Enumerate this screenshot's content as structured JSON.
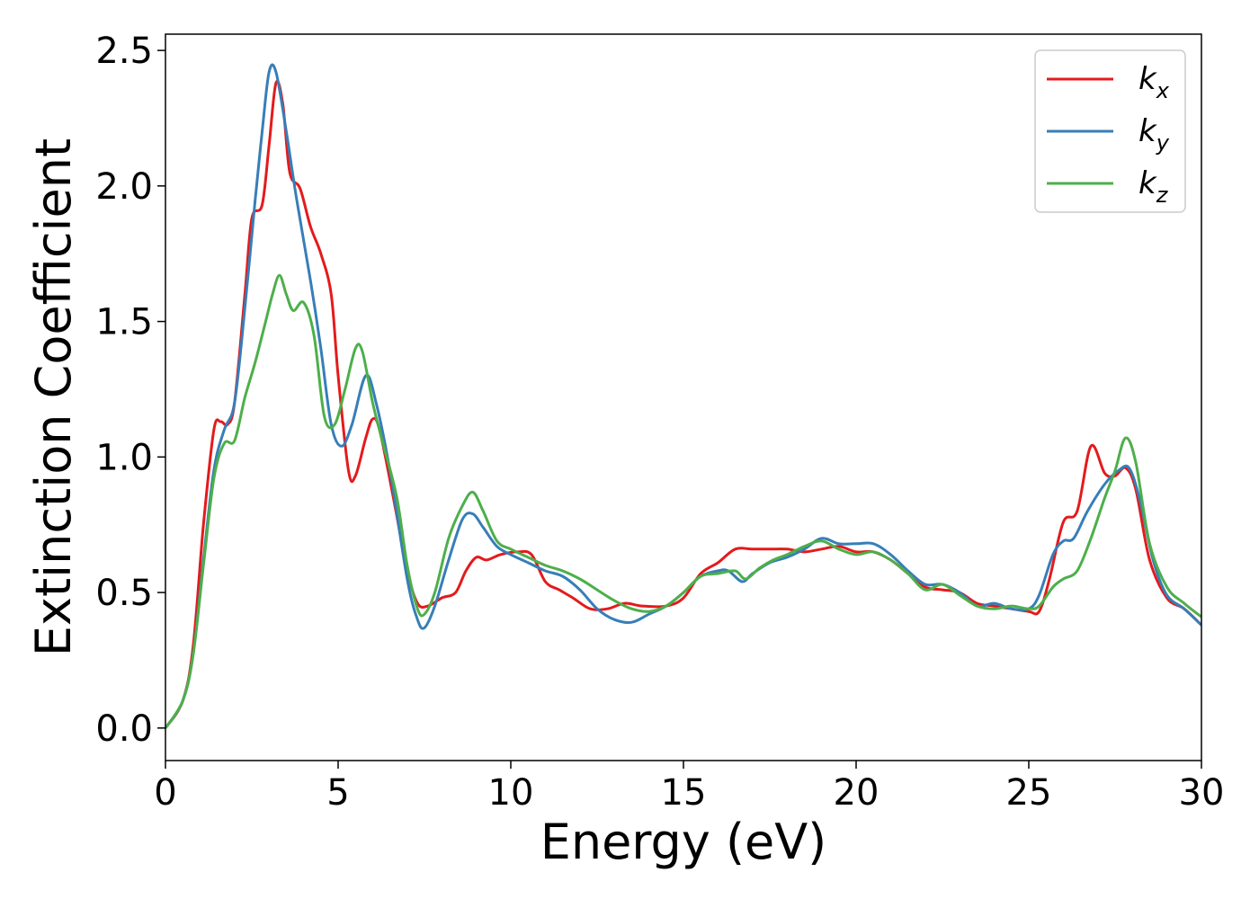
{
  "chart_data": {
    "type": "line",
    "xlabel": "Energy (eV)",
    "ylabel": "Extinction Coefficient",
    "xlim": [
      0,
      30
    ],
    "ylim": [
      -0.12,
      2.56
    ],
    "x_ticks": [
      "0",
      "5",
      "10",
      "15",
      "20",
      "25",
      "30"
    ],
    "y_ticks": [
      "0.0",
      "0.5",
      "1.0",
      "1.5",
      "2.0",
      "2.5"
    ],
    "legend_position": "top-right",
    "grid": false,
    "series": [
      {
        "name": "k_x",
        "label_main": "k",
        "label_sub": "x",
        "color": "#e41a1c",
        "points": [
          [
            0,
            0
          ],
          [
            0.5,
            0.1
          ],
          [
            0.8,
            0.3
          ],
          [
            1.1,
            0.75
          ],
          [
            1.4,
            1.1
          ],
          [
            1.6,
            1.13
          ],
          [
            1.8,
            1.12
          ],
          [
            2.0,
            1.2
          ],
          [
            2.3,
            1.6
          ],
          [
            2.5,
            1.88
          ],
          [
            2.8,
            1.93
          ],
          [
            3.0,
            2.15
          ],
          [
            3.2,
            2.38
          ],
          [
            3.4,
            2.3
          ],
          [
            3.6,
            2.05
          ],
          [
            3.9,
            1.99
          ],
          [
            4.2,
            1.85
          ],
          [
            4.5,
            1.75
          ],
          [
            4.8,
            1.6
          ],
          [
            5.0,
            1.3
          ],
          [
            5.3,
            0.95
          ],
          [
            5.5,
            0.93
          ],
          [
            5.8,
            1.07
          ],
          [
            6.0,
            1.14
          ],
          [
            6.2,
            1.1
          ],
          [
            6.6,
            0.85
          ],
          [
            7.0,
            0.58
          ],
          [
            7.3,
            0.46
          ],
          [
            7.6,
            0.45
          ],
          [
            8.0,
            0.48
          ],
          [
            8.4,
            0.5
          ],
          [
            8.7,
            0.58
          ],
          [
            9.0,
            0.63
          ],
          [
            9.3,
            0.62
          ],
          [
            9.7,
            0.64
          ],
          [
            10.2,
            0.65
          ],
          [
            10.6,
            0.64
          ],
          [
            11.0,
            0.54
          ],
          [
            11.4,
            0.51
          ],
          [
            11.8,
            0.48
          ],
          [
            12.3,
            0.44
          ],
          [
            12.8,
            0.44
          ],
          [
            13.3,
            0.46
          ],
          [
            13.8,
            0.45
          ],
          [
            14.5,
            0.45
          ],
          [
            15.0,
            0.48
          ],
          [
            15.5,
            0.57
          ],
          [
            16.0,
            0.61
          ],
          [
            16.5,
            0.66
          ],
          [
            17.0,
            0.66
          ],
          [
            17.5,
            0.66
          ],
          [
            18.0,
            0.66
          ],
          [
            18.5,
            0.65
          ],
          [
            19.0,
            0.66
          ],
          [
            19.5,
            0.67
          ],
          [
            20.0,
            0.65
          ],
          [
            20.5,
            0.65
          ],
          [
            21.0,
            0.62
          ],
          [
            21.5,
            0.57
          ],
          [
            22.0,
            0.52
          ],
          [
            22.5,
            0.51
          ],
          [
            23.0,
            0.5
          ],
          [
            23.5,
            0.46
          ],
          [
            24.0,
            0.45
          ],
          [
            24.5,
            0.44
          ],
          [
            25.0,
            0.43
          ],
          [
            25.3,
            0.43
          ],
          [
            25.6,
            0.55
          ],
          [
            26.0,
            0.76
          ],
          [
            26.4,
            0.8
          ],
          [
            26.8,
            1.04
          ],
          [
            27.2,
            0.94
          ],
          [
            27.5,
            0.93
          ],
          [
            27.8,
            0.96
          ],
          [
            28.1,
            0.88
          ],
          [
            28.5,
            0.62
          ],
          [
            29.0,
            0.48
          ],
          [
            29.5,
            0.44
          ],
          [
            30,
            0.38
          ]
        ]
      },
      {
        "name": "k_y",
        "label_main": "k",
        "label_sub": "y",
        "color": "#377eb8",
        "points": [
          [
            0,
            0
          ],
          [
            0.5,
            0.1
          ],
          [
            0.8,
            0.27
          ],
          [
            1.1,
            0.62
          ],
          [
            1.4,
            0.95
          ],
          [
            1.7,
            1.1
          ],
          [
            2.0,
            1.2
          ],
          [
            2.3,
            1.55
          ],
          [
            2.6,
            1.95
          ],
          [
            2.8,
            2.2
          ],
          [
            3.0,
            2.42
          ],
          [
            3.2,
            2.42
          ],
          [
            3.5,
            2.2
          ],
          [
            3.8,
            1.95
          ],
          [
            4.2,
            1.65
          ],
          [
            4.5,
            1.4
          ],
          [
            4.8,
            1.12
          ],
          [
            5.1,
            1.04
          ],
          [
            5.4,
            1.12
          ],
          [
            5.8,
            1.3
          ],
          [
            6.1,
            1.2
          ],
          [
            6.5,
            0.95
          ],
          [
            7.0,
            0.55
          ],
          [
            7.3,
            0.4
          ],
          [
            7.5,
            0.37
          ],
          [
            7.8,
            0.45
          ],
          [
            8.2,
            0.62
          ],
          [
            8.6,
            0.77
          ],
          [
            8.9,
            0.79
          ],
          [
            9.2,
            0.74
          ],
          [
            9.6,
            0.67
          ],
          [
            10.0,
            0.64
          ],
          [
            10.5,
            0.61
          ],
          [
            11.0,
            0.58
          ],
          [
            11.5,
            0.56
          ],
          [
            12.0,
            0.51
          ],
          [
            12.5,
            0.44
          ],
          [
            13.0,
            0.4
          ],
          [
            13.5,
            0.39
          ],
          [
            14.0,
            0.42
          ],
          [
            14.5,
            0.45
          ],
          [
            15.0,
            0.5
          ],
          [
            15.5,
            0.56
          ],
          [
            16.0,
            0.58
          ],
          [
            16.3,
            0.58
          ],
          [
            16.7,
            0.54
          ],
          [
            17.0,
            0.57
          ],
          [
            17.5,
            0.61
          ],
          [
            18.0,
            0.63
          ],
          [
            18.5,
            0.66
          ],
          [
            19.0,
            0.7
          ],
          [
            19.5,
            0.68
          ],
          [
            20.0,
            0.68
          ],
          [
            20.5,
            0.68
          ],
          [
            21.0,
            0.64
          ],
          [
            21.5,
            0.58
          ],
          [
            22.0,
            0.53
          ],
          [
            22.5,
            0.53
          ],
          [
            23.0,
            0.5
          ],
          [
            23.5,
            0.45
          ],
          [
            24.0,
            0.46
          ],
          [
            24.5,
            0.44
          ],
          [
            25.0,
            0.44
          ],
          [
            25.3,
            0.49
          ],
          [
            25.7,
            0.64
          ],
          [
            26.0,
            0.69
          ],
          [
            26.3,
            0.7
          ],
          [
            26.7,
            0.8
          ],
          [
            27.2,
            0.9
          ],
          [
            27.6,
            0.95
          ],
          [
            27.9,
            0.96
          ],
          [
            28.2,
            0.85
          ],
          [
            28.6,
            0.62
          ],
          [
            29.0,
            0.49
          ],
          [
            29.5,
            0.44
          ],
          [
            30,
            0.38
          ]
        ]
      },
      {
        "name": "k_z",
        "label_main": "k",
        "label_sub": "z",
        "color": "#4daf4a",
        "points": [
          [
            0,
            0
          ],
          [
            0.5,
            0.1
          ],
          [
            0.8,
            0.27
          ],
          [
            1.1,
            0.6
          ],
          [
            1.4,
            0.92
          ],
          [
            1.7,
            1.05
          ],
          [
            2.0,
            1.06
          ],
          [
            2.3,
            1.22
          ],
          [
            2.6,
            1.35
          ],
          [
            2.9,
            1.5
          ],
          [
            3.1,
            1.6
          ],
          [
            3.3,
            1.67
          ],
          [
            3.5,
            1.6
          ],
          [
            3.7,
            1.54
          ],
          [
            4.0,
            1.57
          ],
          [
            4.3,
            1.45
          ],
          [
            4.6,
            1.15
          ],
          [
            4.9,
            1.12
          ],
          [
            5.2,
            1.25
          ],
          [
            5.5,
            1.4
          ],
          [
            5.7,
            1.39
          ],
          [
            6.0,
            1.2
          ],
          [
            6.3,
            1.05
          ],
          [
            6.7,
            0.85
          ],
          [
            7.0,
            0.6
          ],
          [
            7.3,
            0.44
          ],
          [
            7.5,
            0.42
          ],
          [
            7.8,
            0.5
          ],
          [
            8.2,
            0.7
          ],
          [
            8.6,
            0.82
          ],
          [
            8.9,
            0.87
          ],
          [
            9.2,
            0.8
          ],
          [
            9.6,
            0.69
          ],
          [
            10.0,
            0.66
          ],
          [
            10.5,
            0.63
          ],
          [
            11.0,
            0.6
          ],
          [
            11.5,
            0.58
          ],
          [
            12.0,
            0.55
          ],
          [
            12.5,
            0.51
          ],
          [
            13.0,
            0.47
          ],
          [
            13.5,
            0.44
          ],
          [
            14.0,
            0.43
          ],
          [
            14.5,
            0.45
          ],
          [
            15.0,
            0.5
          ],
          [
            15.5,
            0.56
          ],
          [
            16.0,
            0.57
          ],
          [
            16.5,
            0.58
          ],
          [
            16.8,
            0.55
          ],
          [
            17.2,
            0.59
          ],
          [
            17.6,
            0.62
          ],
          [
            18.0,
            0.64
          ],
          [
            18.5,
            0.67
          ],
          [
            19.0,
            0.69
          ],
          [
            19.5,
            0.66
          ],
          [
            20.0,
            0.64
          ],
          [
            20.5,
            0.65
          ],
          [
            21.0,
            0.62
          ],
          [
            21.5,
            0.57
          ],
          [
            22.0,
            0.51
          ],
          [
            22.5,
            0.53
          ],
          [
            23.0,
            0.49
          ],
          [
            23.5,
            0.45
          ],
          [
            24.0,
            0.44
          ],
          [
            24.5,
            0.45
          ],
          [
            25.0,
            0.44
          ],
          [
            25.3,
            0.45
          ],
          [
            25.7,
            0.52
          ],
          [
            26.0,
            0.55
          ],
          [
            26.4,
            0.58
          ],
          [
            26.8,
            0.7
          ],
          [
            27.2,
            0.85
          ],
          [
            27.5,
            0.95
          ],
          [
            27.8,
            1.07
          ],
          [
            28.1,
            0.98
          ],
          [
            28.5,
            0.68
          ],
          [
            29.0,
            0.52
          ],
          [
            29.5,
            0.46
          ],
          [
            30,
            0.41
          ]
        ]
      }
    ]
  }
}
